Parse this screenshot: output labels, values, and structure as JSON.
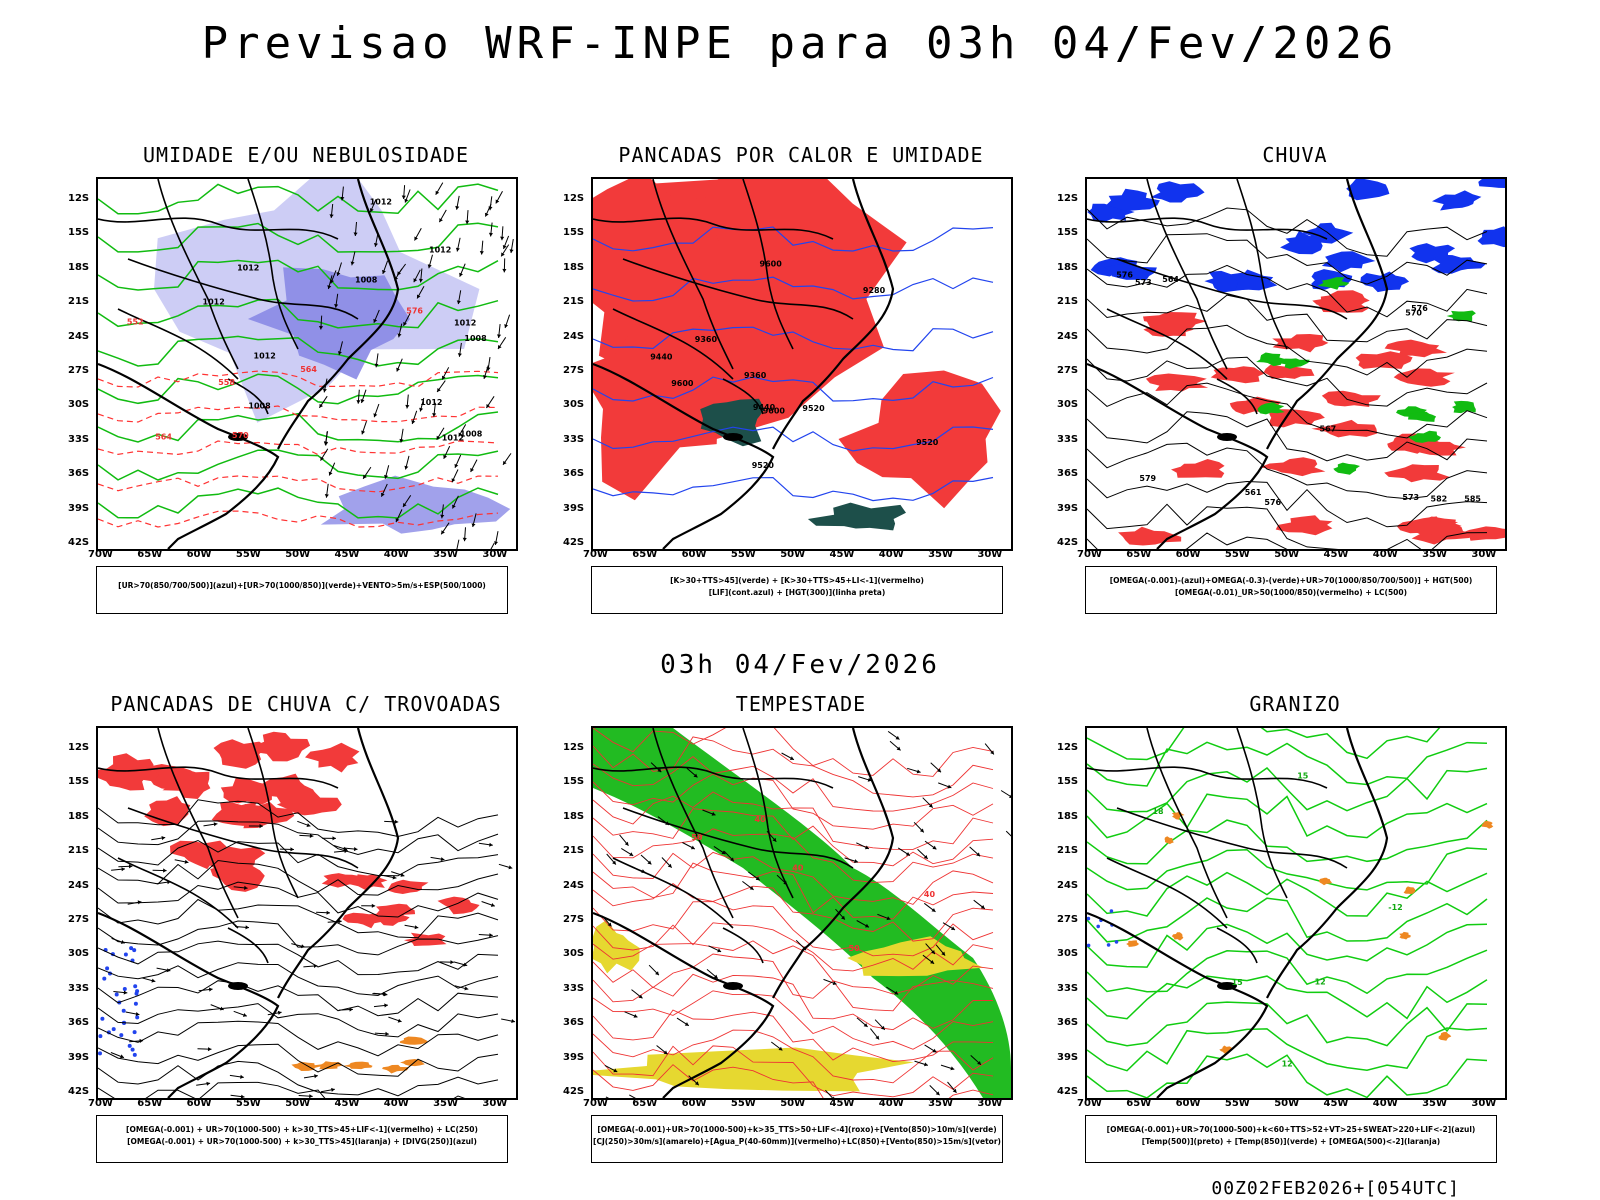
{
  "main_title": "Previsao WRF-INPE  para 03h 04/Fev/2026",
  "mid_label": "03h 04/Fev/2026",
  "footer": "00Z02FEB2026+[054UTC]",
  "lat_labels": [
    "12S",
    "15S",
    "18S",
    "21S",
    "24S",
    "27S",
    "30S",
    "33S",
    "36S",
    "39S",
    "42S"
  ],
  "lon_labels": [
    "70W",
    "65W",
    "60W",
    "55W",
    "50W",
    "45W",
    "40W",
    "35W",
    "30W"
  ],
  "panels": [
    {
      "title": "UMIDADE E/OU NEBULOSIDADE",
      "legend": [
        "[UR>70(850/700/500)](azul)+[UR>70(1000/850)](verde)+VENTO>5m/s+ESP(500/1000)"
      ],
      "contour_labels": [
        "1012",
        "1012",
        "1008",
        "1008",
        "1012",
        "1008",
        "1008",
        "1012",
        "1012",
        "1012",
        "1012",
        "1012",
        "576",
        "570",
        "564",
        "564",
        "558",
        "552"
      ],
      "colors": {
        "fill_a": "#8a8ae6",
        "fill_b": "#c8c8f4",
        "line_a": "#11bb11",
        "line_b": "#ff3333"
      }
    },
    {
      "title": "PANCADAS POR CALOR E UMIDADE",
      "legend": [
        "[K>30+TTS>45](verde) + [K>30+TTS>45+LI<-1](vermelho)",
        "[LIF](cont.azul) + [HGT(300)](linha preta)"
      ],
      "contour_labels": [
        "9600",
        "9600",
        "9520",
        "9520",
        "9600",
        "9520",
        "9440",
        "9440",
        "9360",
        "9360",
        "9280"
      ],
      "colors": {
        "fill_a": "#f23a3a",
        "fill_b": "#1d4f4a",
        "line_a": "#2244ee",
        "line_b": "#000000"
      }
    },
    {
      "title": "CHUVA",
      "legend": [
        "[OMEGA(-0.001)-(azul)+OMEGA(-0.3)-(verde)+UR>70(1000/850/700/500)] + HGT(500)",
        "[OMEGA(-0.01)_UR>50(1000/850)(vermelho) + LC(500)"
      ],
      "contour_labels": [
        "585",
        "582",
        "576",
        "579",
        "576",
        "573",
        "576",
        "573",
        "570",
        "567",
        "564",
        "561"
      ],
      "colors": {
        "fill_a": "#1133ee",
        "fill_b": "#f23a3a",
        "line_a": "#11bb11",
        "line_b": "#000000"
      }
    },
    {
      "title": "PANCADAS DE CHUVA C/ TROVOADAS",
      "legend": [
        "[OMEGA(-0.001) + UR>70(1000-500) + k>30_TTS>45+LIF<-1](vermelho) + LC(250)",
        "[OMEGA(-0.001) + UR>70(1000-500) + k>30_TTS>45](laranja) + [DIVG(250)](azul)"
      ],
      "contour_labels": [],
      "colors": {
        "fill_a": "#f23a3a",
        "fill_b": "#ee8822",
        "line_a": "#2244ee",
        "line_b": "#000000"
      }
    },
    {
      "title": "TEMPESTADE",
      "legend": [
        "[OMEGA(-0.001)+UR>70(1000-500)+k>35_TTS>50+LIF<-4](roxo)+[Vento(850)>10m/s](verde)",
        "[CJ(250)>30m/s](amarelo)+[Agua_P(40-60mm)](vermelho)+LC(850)+[Vento(850)>15m/s](vetor)"
      ],
      "contour_labels": [
        "50",
        "40",
        "40",
        "50",
        "40"
      ],
      "colors": {
        "fill_a": "#22bb22",
        "fill_b": "#e6d830",
        "line_a": "#ee3333",
        "line_b": "#000000"
      }
    },
    {
      "title": "GRANIZO",
      "legend": [
        "[OMEGA(-0.001)+UR>70(1000-500)+k<60+TTS>52+VT>25+SWEAT>220+LIF<-2](azul)",
        "[Temp(500)](preto) + [Temp(850)](verde) + [OMEGA(500)<-2](laranja)"
      ],
      "contour_labels": [
        "12",
        "15",
        "12",
        "-12",
        "15",
        "18"
      ],
      "colors": {
        "fill_a": "#ee8822",
        "fill_b": "#2244ee",
        "line_a": "#11cc11",
        "line_b": "#000000"
      }
    }
  ]
}
